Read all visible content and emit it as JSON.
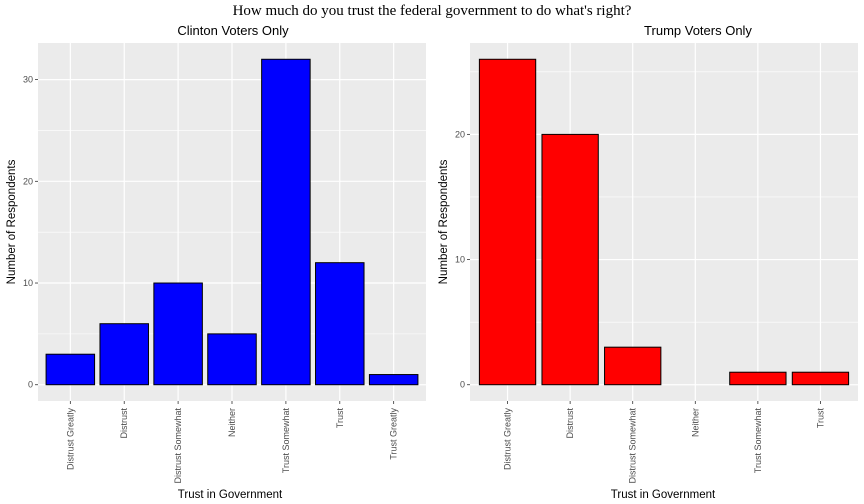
{
  "figure": {
    "title": "How much do you trust the federal government to do what's right?"
  },
  "chart_data": [
    {
      "type": "bar",
      "title": "Clinton Voters Only",
      "xlabel": "Trust in Government",
      "ylabel": "Number of Respondents",
      "categories": [
        "Distrust  Greatly",
        "Distrust",
        "Distrust  Somewhat",
        "Neither",
        "Trust  Somewhat",
        "Trust",
        "Trust  Greatly"
      ],
      "values": [
        3,
        6,
        10,
        5,
        32,
        12,
        1
      ],
      "yticks": [
        0,
        10,
        20,
        30
      ],
      "ylim": [
        -1.6,
        33.6
      ],
      "color": "#0000ff",
      "grid": true,
      "legend": "none"
    },
    {
      "type": "bar",
      "title": "Trump Voters Only",
      "xlabel": "Trust in Government",
      "ylabel": "Number of Respondents",
      "categories": [
        "Distrust Greatly",
        "Distrust",
        "Distrust  Somewhat",
        "Neither",
        "Trust Somewhat",
        "Trust"
      ],
      "values": [
        26,
        20,
        3,
        0,
        1,
        1
      ],
      "yticks": [
        0,
        10,
        20
      ],
      "ylim": [
        -1.3,
        27.3
      ],
      "color": "#ff0000",
      "grid": true,
      "legend": "none"
    }
  ]
}
